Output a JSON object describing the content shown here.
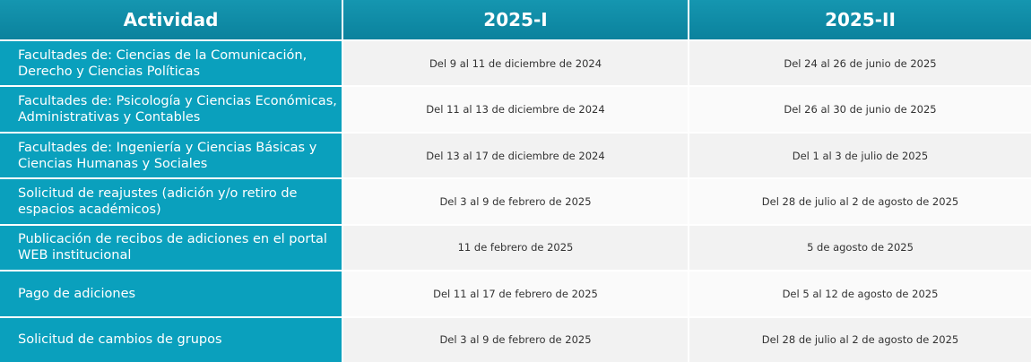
{
  "table": {
    "header": [
      "Actividad",
      "2025-I",
      "2025-II"
    ],
    "rows": [
      [
        "Facultades de: Ciencias de la Comunicación, Derecho y Ciencias Políticas",
        "Del 9 al 11 de diciembre de 2024",
        "Del 24 al 26 de junio de 2025"
      ],
      [
        "Facultades de: Psicología y Ciencias Económicas, Administrativas y Contables",
        "Del 11 al 13 de diciembre de 2024",
        "Del 26 al 30 de junio de 2025"
      ],
      [
        "Facultades de: Ingeniería y Ciencias Básicas y Ciencias Humanas y Sociales",
        "Del 13 al 17 de diciembre de 2024",
        "Del 1 al 3 de julio de 2025"
      ],
      [
        "Solicitud de reajustes (adición y/o retiro de espacios académicos)",
        "Del 3 al 9 de febrero de 2025",
        "Del 28 de julio al 2 de agosto de 2025"
      ],
      [
        "Publicación de recibos de adiciones en el portal WEB institucional",
        "11 de febrero de 2025",
        "5 de agosto de 2025"
      ],
      [
        "Pago de adiciones",
        "Del 11 al 17 de febrero de 2025",
        "Del 5 al 12 de agosto de 2025"
      ],
      [
        "Solicitud de cambios de grupos",
        "Del 3 al 9 de febrero de 2025",
        "Del 28 de julio al 2 de agosto de 2025"
      ]
    ]
  }
}
